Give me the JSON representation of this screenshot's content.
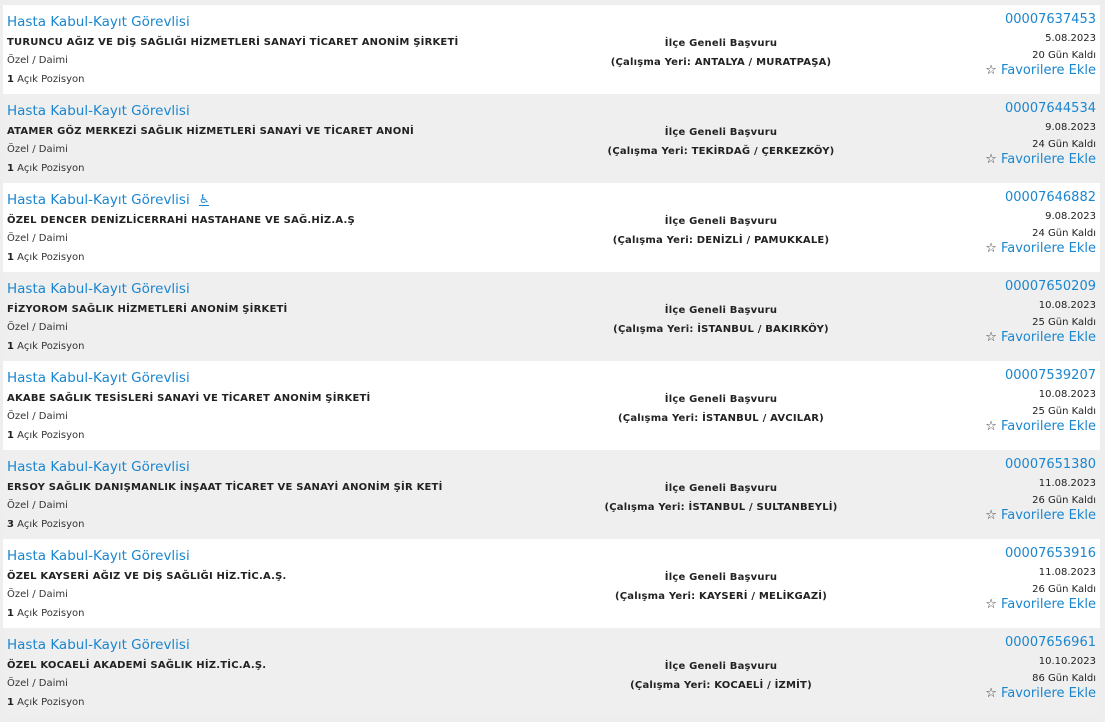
{
  "colors": {
    "link": "#1a86cf",
    "row_alt": "#efefef",
    "row": "#ffffff"
  },
  "favorite_label": "Favorilere Ekle",
  "favorite_icon": "star-outline-icon",
  "positions_label": "Açık Pozisyon",
  "listings": [
    {
      "title": "Hasta Kabul-Kayıt Görevlisi",
      "company": "TURUNCU AĞIZ VE DİŞ SAĞLIĞI HİZMETLERİ SANAYİ TİCARET ANONİM ŞİRKETİ",
      "type": "Özel / Daimi",
      "positions": "1",
      "scope": "İlçe Geneli Başvuru",
      "location": "(Çalışma Yeri: ANTALYA / MURATPAŞA)",
      "id": "00007637453",
      "date": "5.08.2023",
      "remaining": "20 Gün Kaldı",
      "accessible": false
    },
    {
      "title": "Hasta Kabul-Kayıt Görevlisi",
      "company": "ATAMER GÖZ MERKEZİ SAĞLIK HİZMETLERİ SANAYİ VE TİCARET ANONİ",
      "type": "Özel / Daimi",
      "positions": "1",
      "scope": "İlçe Geneli Başvuru",
      "location": "(Çalışma Yeri: TEKİRDAĞ / ÇERKEZKÖY)",
      "id": "00007644534",
      "date": "9.08.2023",
      "remaining": "24 Gün Kaldı",
      "accessible": false
    },
    {
      "title": "Hasta Kabul-Kayıt Görevlisi",
      "company": "ÖZEL DENCER DENİZLİCERRAHİ HASTAHANE VE SAĞ.HİZ.A.Ş",
      "type": "Özel / Daimi",
      "positions": "1",
      "scope": "İlçe Geneli Başvuru",
      "location": "(Çalışma Yeri: DENİZLİ / PAMUKKALE)",
      "id": "00007646882",
      "date": "9.08.2023",
      "remaining": "24 Gün Kaldı",
      "accessible": true
    },
    {
      "title": "Hasta Kabul-Kayıt Görevlisi",
      "company": "FİZYOROM SAĞLIK HİZMETLERİ ANONİM ŞİRKETİ",
      "type": "Özel / Daimi",
      "positions": "1",
      "scope": "İlçe Geneli Başvuru",
      "location": "(Çalışma Yeri: İSTANBUL / BAKIRKÖY)",
      "id": "00007650209",
      "date": "10.08.2023",
      "remaining": "25 Gün Kaldı",
      "accessible": false
    },
    {
      "title": "Hasta Kabul-Kayıt Görevlisi",
      "company": "AKABE SAĞLIK TESİSLERİ SANAYİ VE TİCARET ANONİM ŞİRKETİ",
      "type": "Özel / Daimi",
      "positions": "1",
      "scope": "İlçe Geneli Başvuru",
      "location": "(Çalışma Yeri: İSTANBUL / AVCILAR)",
      "id": "00007539207",
      "date": "10.08.2023",
      "remaining": "25 Gün Kaldı",
      "accessible": false
    },
    {
      "title": "Hasta Kabul-Kayıt Görevlisi",
      "company": "ERSOY SAĞLIK DANIŞMANLIK İNŞAAT TİCARET VE SANAYİ ANONİM ŞİR KETİ",
      "type": "Özel / Daimi",
      "positions": "3",
      "scope": "İlçe Geneli Başvuru",
      "location": "(Çalışma Yeri: İSTANBUL / SULTANBEYLİ)",
      "id": "00007651380",
      "date": "11.08.2023",
      "remaining": "26 Gün Kaldı",
      "accessible": false
    },
    {
      "title": "Hasta Kabul-Kayıt Görevlisi",
      "company": "ÖZEL KAYSERİ AĞIZ VE DİŞ SAĞLIĞI HİZ.TİC.A.Ş.",
      "type": "Özel / Daimi",
      "positions": "1",
      "scope": "İlçe Geneli Başvuru",
      "location": "(Çalışma Yeri: KAYSERİ / MELİKGAZİ)",
      "id": "00007653916",
      "date": "11.08.2023",
      "remaining": "26 Gün Kaldı",
      "accessible": false
    },
    {
      "title": "Hasta Kabul-Kayıt Görevlisi",
      "company": "ÖZEL KOCAELİ AKADEMİ SAĞLIK HİZ.TİC.A.Ş.",
      "type": "Özel / Daimi",
      "positions": "1",
      "scope": "İlçe Geneli Başvuru",
      "location": "(Çalışma Yeri: KOCAELİ / İZMİT)",
      "id": "00007656961",
      "date": "10.10.2023",
      "remaining": "86 Gün Kaldı",
      "accessible": false
    }
  ]
}
